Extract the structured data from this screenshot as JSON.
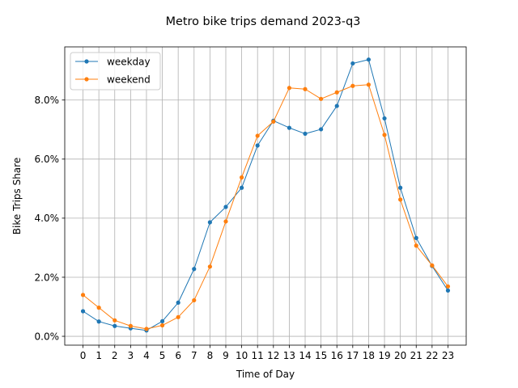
{
  "chart_data": {
    "type": "line",
    "title": "Metro bike trips demand 2023-q3",
    "xlabel": "Time of Day",
    "ylabel": "Bike Trips Share",
    "x": [
      0,
      1,
      2,
      3,
      4,
      5,
      6,
      7,
      8,
      9,
      10,
      11,
      12,
      13,
      14,
      15,
      16,
      17,
      18,
      19,
      20,
      21,
      22,
      23
    ],
    "xlim": [
      -1.15,
      24.15
    ],
    "ylim": [
      -0.3,
      9.8
    ],
    "yticks": [
      0,
      2,
      4,
      6,
      8
    ],
    "ytick_labels": [
      "0.0%",
      "2.0%",
      "4.0%",
      "6.0%",
      "8.0%"
    ],
    "y_unit": "%",
    "grid": true,
    "legend_position": "top-left",
    "series": [
      {
        "name": "weekday",
        "color": "#1f77b4",
        "values": [
          0.85,
          0.5,
          0.35,
          0.27,
          0.2,
          0.51,
          1.14,
          2.28,
          3.86,
          4.38,
          5.03,
          6.46,
          7.3,
          7.06,
          6.86,
          7.01,
          7.8,
          9.24,
          9.37,
          7.38,
          5.03,
          3.33,
          2.38,
          1.55
        ]
      },
      {
        "name": "weekend",
        "color": "#ff7f0e",
        "values": [
          1.4,
          0.97,
          0.54,
          0.35,
          0.25,
          0.37,
          0.65,
          1.22,
          2.36,
          3.89,
          5.38,
          6.79,
          7.27,
          8.41,
          8.37,
          8.04,
          8.26,
          8.48,
          8.52,
          6.82,
          4.63,
          3.07,
          2.4,
          1.69
        ]
      }
    ]
  }
}
